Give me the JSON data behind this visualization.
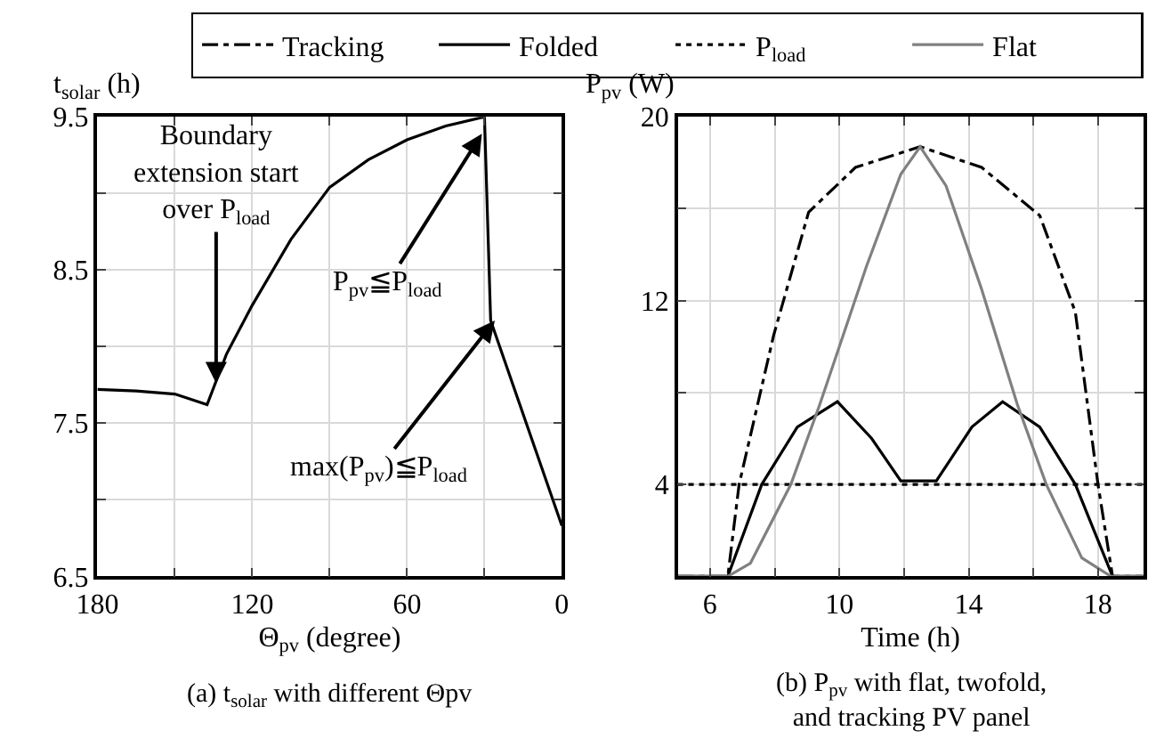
{
  "chart_data": [
    {
      "type": "line",
      "ylabel": "t$_{solar}$ (h)",
      "xlabel": "Θ$_{pv}$ (degree)",
      "annotations": [
        "(a) t$_{solar}$ with different Θpv",
        {
          "text": "Boundary\nextension start\nover P$_{load}$",
          "x": 134,
          "y": 7.76
        },
        {
          "text": "P$_{pv}$≦P$_{load}$",
          "x": 31,
          "y": 9.39
        },
        {
          "text": "max(P$_{pv}$)≦P$_{load}$",
          "x": 26,
          "y": 8.17
        }
      ],
      "x": [
        180,
        165,
        150,
        137.5,
        130,
        120,
        105,
        90,
        75,
        60,
        45,
        30,
        27.6,
        0
      ],
      "series": [
        {
          "color": "#000000",
          "values": [
            7.72,
            7.71,
            7.69,
            7.62,
            7.95,
            8.27,
            8.7,
            9.04,
            9.22,
            9.35,
            9.44,
            9.5,
            8.17,
            6.83
          ]
        }
      ],
      "xlim": [
        180,
        0
      ],
      "ylim": [
        6.5,
        9.5
      ],
      "xticks": [
        180,
        {
          "value": 150,
          "label": null
        },
        120,
        {
          "value": 90,
          "label": null
        },
        60,
        {
          "value": 30,
          "label": null
        },
        0
      ],
      "yticks": [
        6.5,
        {
          "value": 7,
          "label": null
        },
        7.5,
        {
          "value": 8,
          "label": null
        },
        8.5,
        {
          "value": 9,
          "label": null
        },
        9.5
      ],
      "grid": true,
      "line_style": "solid"
    },
    {
      "type": "line",
      "ylabel": "P$_{pv}$ (W)",
      "xlabel": "Time (h)",
      "annotations": [
        "(b) P$_{pv}$ with flat, twofold,\nand tracking PV panel"
      ],
      "legend": "top",
      "series": [
        {
          "name": "Tracking",
          "color": "#000000",
          "line_style": "dashdot",
          "x": [
            5,
            6.55,
            6.9,
            7.97,
            9.05,
            10.5,
            12.5,
            14.4,
            16.2,
            17.3,
            18.0,
            18.45,
            19.4
          ],
          "values": [
            0,
            0,
            4,
            10.5,
            15.85,
            17.8,
            18.7,
            17.8,
            15.7,
            11.5,
            4,
            0,
            0
          ]
        },
        {
          "name": "Folded",
          "color": "#000000",
          "line_style": "solid",
          "x": [
            5,
            6.55,
            7.6,
            8.7,
            9.94,
            11.0,
            11.9,
            13.0,
            14.1,
            15.05,
            16.2,
            17.3,
            18.45,
            19.4
          ],
          "values": [
            0,
            0,
            4,
            6.5,
            7.6,
            6.0,
            4.15,
            4.15,
            6.5,
            7.6,
            6.5,
            4,
            0,
            0
          ]
        },
        {
          "name": "P$_{load}$",
          "color": "#000000",
          "line_style": "dotted",
          "x": [
            5,
            19.4
          ],
          "values": [
            4,
            4
          ]
        },
        {
          "name": "Flat",
          "color": "#808080",
          "line_style": "solid",
          "x": [
            5,
            6.55,
            7.25,
            8.5,
            9.4,
            10.84,
            11.9,
            12.5,
            13.3,
            14.4,
            15.5,
            16.4,
            17.5,
            18.4,
            19.4
          ],
          "values": [
            0,
            0,
            0.57,
            4,
            7.5,
            13.5,
            17.5,
            18.7,
            17,
            12.5,
            7.5,
            4,
            0.8,
            0,
            0
          ]
        }
      ],
      "xlim": [
        5,
        19.4
      ],
      "ylim": [
        0,
        20
      ],
      "xticks": [
        6,
        {
          "value": 8,
          "label": null
        },
        10,
        {
          "value": 12,
          "label": null
        },
        14,
        {
          "value": 16,
          "label": null
        },
        18
      ],
      "yticks": [
        {
          "value": 0,
          "label": null
        },
        4,
        {
          "value": 8,
          "label": null
        },
        12,
        {
          "value": 16,
          "label": null
        },
        20
      ],
      "grid": true
    }
  ]
}
